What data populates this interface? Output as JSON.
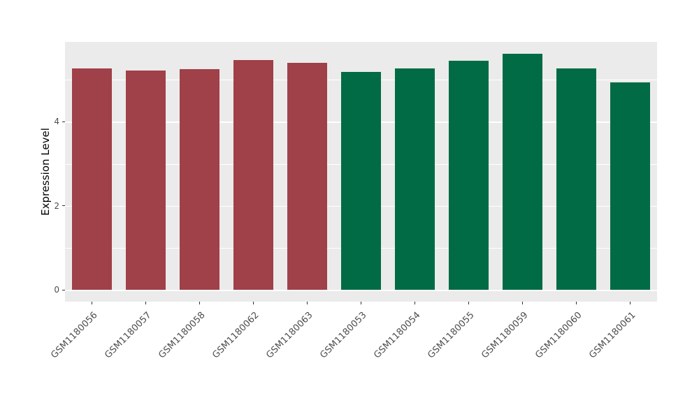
{
  "chart_data": {
    "type": "bar",
    "categories": [
      "GSM1180056",
      "GSM1180057",
      "GSM1180058",
      "GSM1180062",
      "GSM1180063",
      "GSM1180053",
      "GSM1180054",
      "GSM1180055",
      "GSM1180059",
      "GSM1180060",
      "GSM1180061"
    ],
    "values": [
      5.27,
      5.22,
      5.25,
      5.47,
      5.4,
      5.18,
      5.27,
      5.45,
      5.62,
      5.27,
      4.93
    ],
    "bar_colors": [
      "#A04049",
      "#A04049",
      "#A04049",
      "#A04049",
      "#A04049",
      "#006B44",
      "#006B44",
      "#006B44",
      "#006B44",
      "#006B44",
      "#006B44"
    ],
    "title": "",
    "xlabel": "",
    "ylabel": "Expression Level",
    "ylim": [
      0,
      5.62
    ],
    "yticks": [
      0,
      2,
      4
    ],
    "yticks_minor": [
      1,
      3,
      5
    ],
    "grid": true,
    "legend": "none",
    "panel_background": "#EBEBEB",
    "gridline_color": "#FFFFFF"
  }
}
